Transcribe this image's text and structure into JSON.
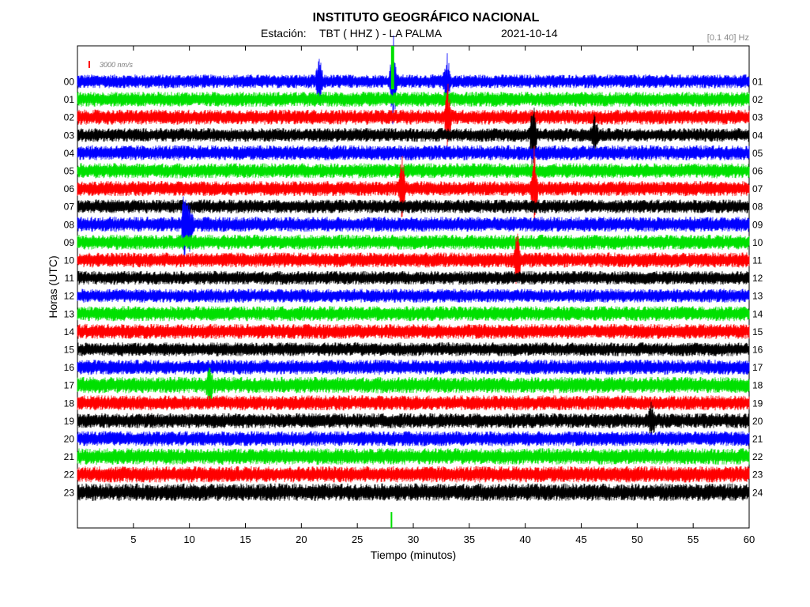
{
  "chart_data": {
    "type": "line",
    "title": "INSTITUTO GEOGRÁFICO NACIONAL",
    "subtitle": {
      "station_label": "Estación:",
      "station": "TBT ( HHZ ) - LA PALMA",
      "date": "2021-10-14"
    },
    "filter_band": "[0.1 40] Hz",
    "scale_label": "3000 nm/s",
    "xlabel": "Tiempo (minutos)",
    "ylabel": "Horas (UTC)",
    "xlim": [
      0,
      60
    ],
    "x_ticks": [
      "5",
      "10",
      "15",
      "20",
      "25",
      "30",
      "35",
      "40",
      "45",
      "50",
      "55",
      "60"
    ],
    "hours_left": [
      "00",
      "01",
      "02",
      "03",
      "04",
      "05",
      "06",
      "07",
      "08",
      "09",
      "10",
      "11",
      "12",
      "13",
      "14",
      "15",
      "16",
      "17",
      "18",
      "19",
      "20",
      "21",
      "22",
      "23"
    ],
    "hours_right": [
      "01",
      "02",
      "03",
      "04",
      "05",
      "06",
      "07",
      "08",
      "09",
      "10",
      "11",
      "12",
      "13",
      "14",
      "15",
      "16",
      "17",
      "18",
      "19",
      "20",
      "21",
      "22",
      "23",
      "24"
    ],
    "trace_colors": [
      "#0000ff",
      "#00e000",
      "#ff0000",
      "#000000"
    ],
    "noise_amplitude": [
      0.55,
      0.6,
      0.6,
      0.55,
      0.6,
      0.6,
      0.6,
      0.55,
      0.6,
      0.6,
      0.6,
      0.55,
      0.55,
      0.6,
      0.6,
      0.55,
      0.6,
      0.65,
      0.6,
      0.6,
      0.6,
      0.65,
      0.65,
      0.7
    ],
    "events": [
      {
        "hour": 0,
        "minute": 21.6,
        "amplitude": 1.4
      },
      {
        "hour": 0,
        "minute": 28.2,
        "amplitude": 3.0
      },
      {
        "hour": 0,
        "minute": 33.0,
        "amplitude": 1.6
      },
      {
        "hour": 2,
        "minute": 33.1,
        "amplitude": 1.8
      },
      {
        "hour": 3,
        "minute": 40.7,
        "amplitude": 2.2
      },
      {
        "hour": 3,
        "minute": 46.2,
        "amplitude": 1.2
      },
      {
        "hour": 6,
        "minute": 29.0,
        "amplitude": 1.8
      },
      {
        "hour": 6,
        "minute": 40.8,
        "amplitude": 2.2
      },
      {
        "hour": 8,
        "minute": 9.6,
        "amplitude": 2.2
      },
      {
        "hour": 8,
        "minute": 10.0,
        "amplitude": 1.4
      },
      {
        "hour": 10,
        "minute": 39.3,
        "amplitude": 1.6
      },
      {
        "hour": 17,
        "minute": 11.8,
        "amplitude": 1.0
      },
      {
        "hour": 19,
        "minute": 51.3,
        "amplitude": 0.9
      }
    ]
  }
}
